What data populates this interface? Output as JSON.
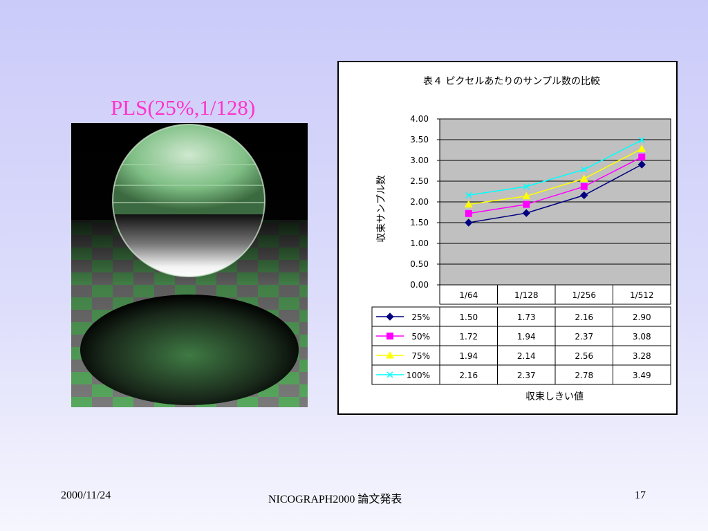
{
  "slide": {
    "title": "PLS(25%,1/128)",
    "footer_date": "2000/11/24",
    "footer_center": "NICOGRAPH2000   論文発表",
    "page_number": "17"
  },
  "colors": {
    "title": "#ff33cc",
    "plot_bg": "#c0c0c0",
    "series": [
      "#000080",
      "#ff00ff",
      "#ffff00",
      "#00ffff"
    ]
  },
  "chart_data": {
    "type": "line",
    "title": "表４ ピクセルあたりのサンプル数の比較",
    "xlabel": "収束しきい値",
    "ylabel": "収束サンプル数",
    "categories": [
      "1/64",
      "1/128",
      "1/256",
      "1/512"
    ],
    "ylim": [
      0,
      4
    ],
    "yticks": [
      "0.00",
      "0.50",
      "1.00",
      "1.50",
      "2.00",
      "2.50",
      "3.00",
      "3.50",
      "4.00"
    ],
    "grid": true,
    "legend": "data-table",
    "series": [
      {
        "name": "25%",
        "marker": "diamond",
        "values": [
          1.5,
          1.73,
          2.16,
          2.9
        ],
        "labels": [
          "1.50",
          "1.73",
          "2.16",
          "2.90"
        ]
      },
      {
        "name": "50%",
        "marker": "square",
        "values": [
          1.72,
          1.94,
          2.37,
          3.08
        ],
        "labels": [
          "1.72",
          "1.94",
          "2.37",
          "3.08"
        ]
      },
      {
        "name": "75%",
        "marker": "triangle",
        "values": [
          1.94,
          2.14,
          2.56,
          3.28
        ],
        "labels": [
          "1.94",
          "2.14",
          "2.56",
          "3.28"
        ]
      },
      {
        "name": "100%",
        "marker": "x",
        "values": [
          2.16,
          2.37,
          2.78,
          3.49
        ],
        "labels": [
          "2.16",
          "2.37",
          "2.78",
          "3.49"
        ]
      }
    ]
  }
}
